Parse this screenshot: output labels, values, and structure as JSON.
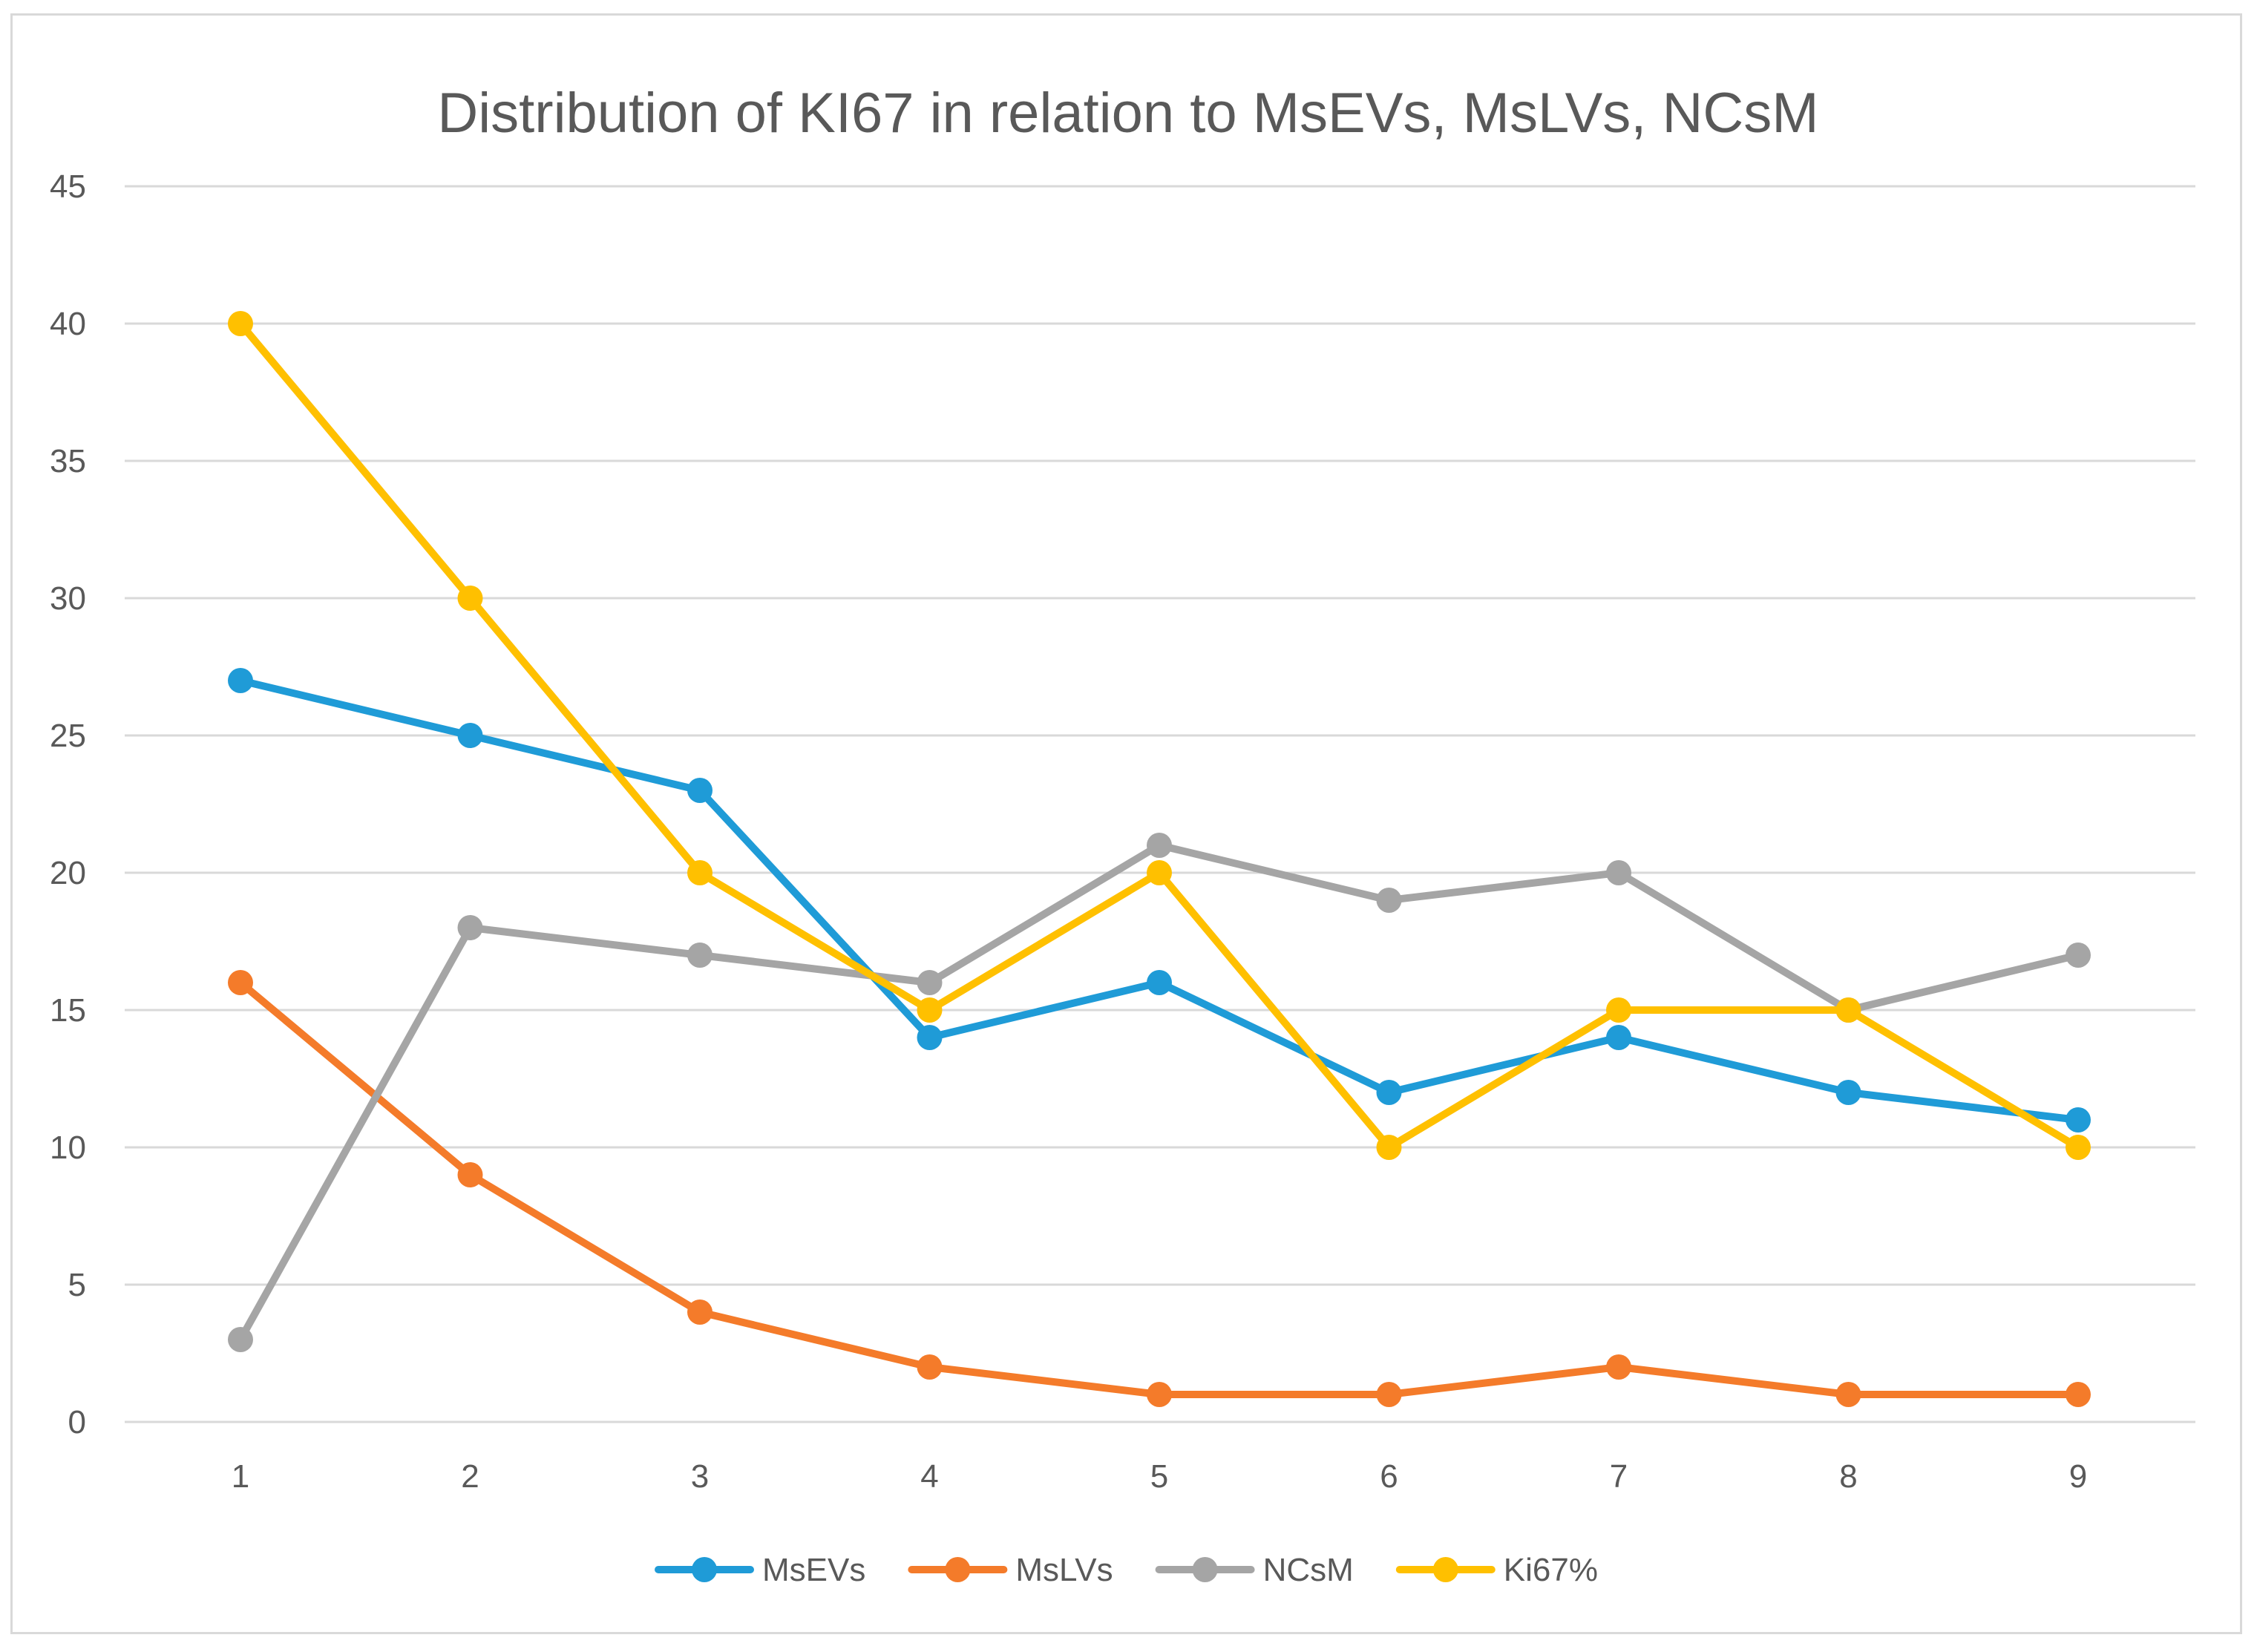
{
  "chart_data": {
    "type": "line",
    "title": "Distribution of KI67 in relation to MsEVs, MsLVs, NCsM",
    "xlabel": "",
    "ylabel": "",
    "x": [
      1,
      2,
      3,
      4,
      5,
      6,
      7,
      8,
      9
    ],
    "ylim": [
      0,
      45
    ],
    "yticks": [
      0,
      5,
      10,
      15,
      20,
      25,
      30,
      35,
      40,
      45
    ],
    "grid": "horizontal",
    "legend_position": "bottom",
    "series": [
      {
        "name": "MsEVs",
        "color": "#1f9bd7",
        "values": [
          27,
          25,
          23,
          14,
          16,
          12,
          14,
          12,
          11
        ]
      },
      {
        "name": "MsLVs",
        "color": "#f47b2a",
        "values": [
          16,
          9,
          4,
          2,
          1,
          1,
          2,
          1,
          1
        ]
      },
      {
        "name": "NCsM",
        "color": "#a5a5a5",
        "values": [
          3,
          18,
          17,
          16,
          21,
          19,
          20,
          15,
          17
        ]
      },
      {
        "name": "Ki67%",
        "color": "#ffc000",
        "values": [
          40,
          30,
          20,
          15,
          20,
          10,
          15,
          15,
          10
        ]
      }
    ]
  }
}
